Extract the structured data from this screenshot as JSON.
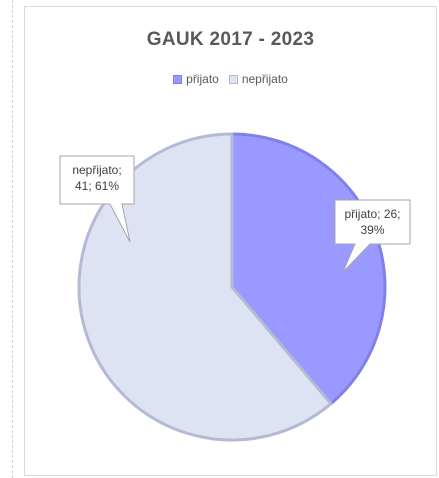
{
  "chart_data": {
    "type": "pie",
    "title": "GAUK 2017 - 2023",
    "legend_position": "top",
    "slices": [
      {
        "label": "přijato",
        "value": 26,
        "percent": "39%",
        "callout": "přijato; 26;",
        "callout2": "39%",
        "color": "#9999ff",
        "edge": "#8080e6"
      },
      {
        "label": "nepřijato",
        "value": 41,
        "percent": "61%",
        "callout": "nepřijato;",
        "callout2": "41; 61%",
        "color": "#dde3f3",
        "edge": "#b3bad6"
      }
    ]
  }
}
